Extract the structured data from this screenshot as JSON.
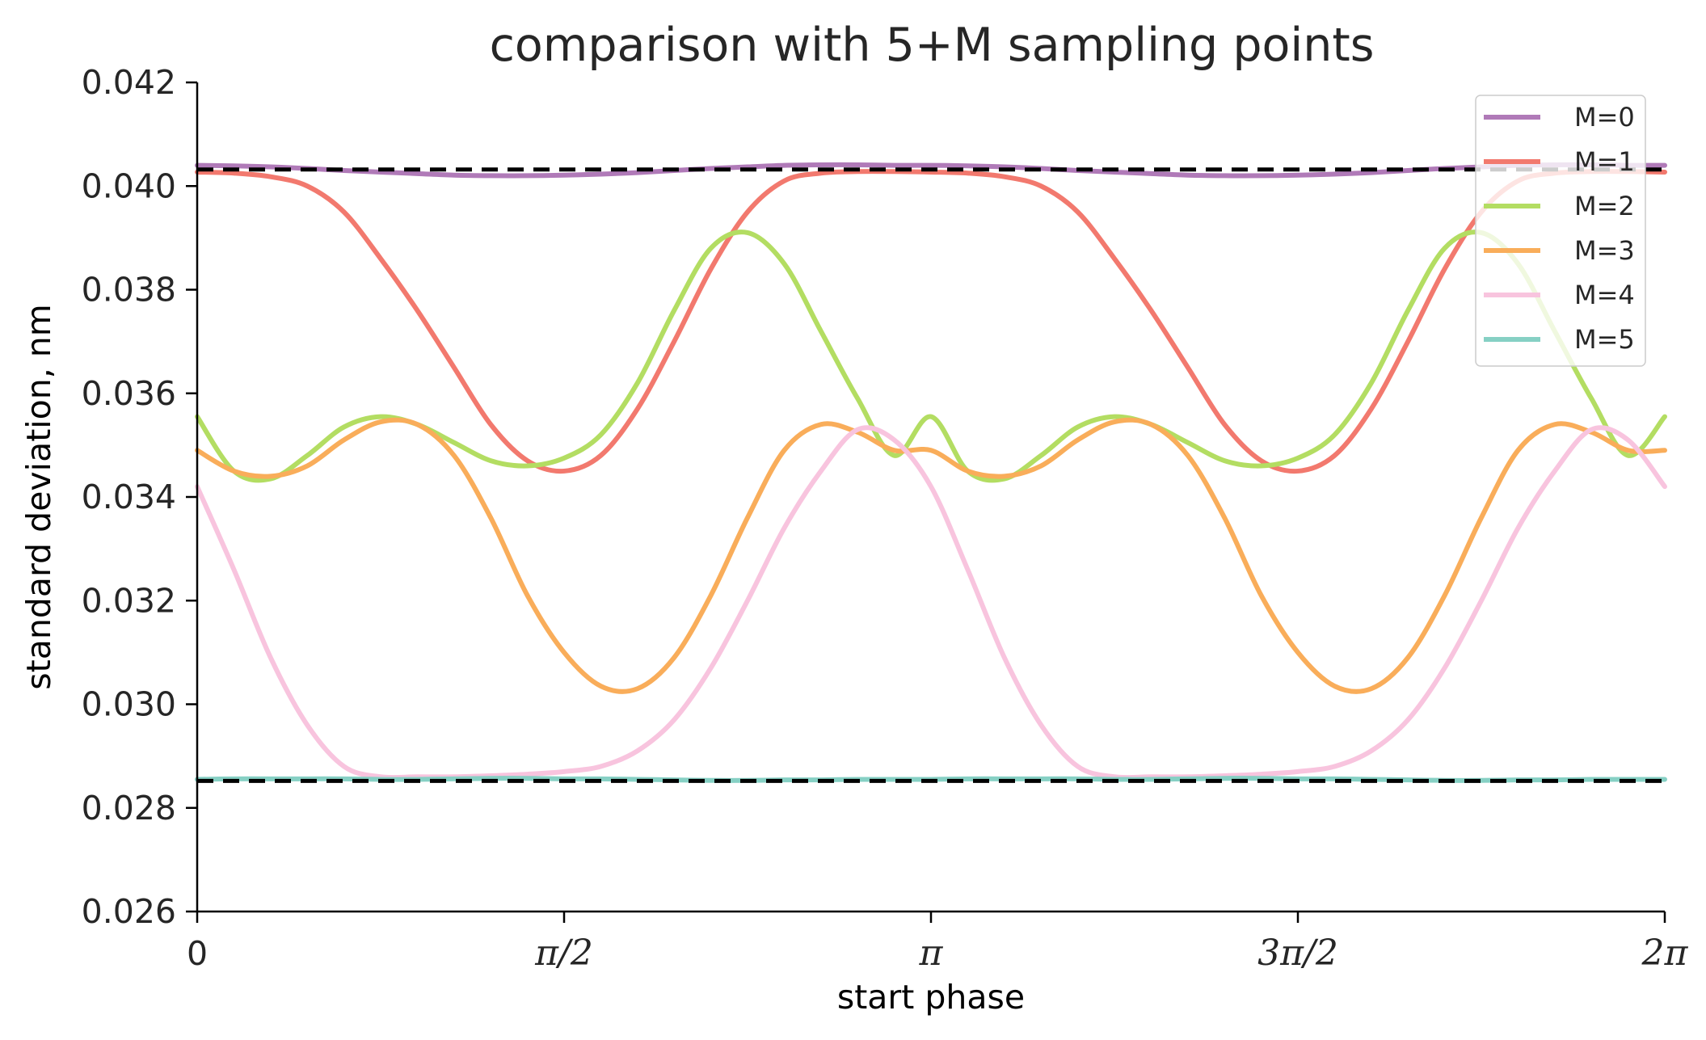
{
  "chart_data": {
    "type": "line",
    "title": "comparison with 5+M sampling points",
    "xlabel": "start phase",
    "ylabel": "standard deviation, nm",
    "xlim": [
      0,
      6.2832
    ],
    "ylim": [
      0.026,
      0.042
    ],
    "x_ticks": [
      {
        "value": 0,
        "label": "0"
      },
      {
        "value": 1.5708,
        "label": "π/2"
      },
      {
        "value": 3.1416,
        "label": "π"
      },
      {
        "value": 4.7124,
        "label": "3π/2"
      },
      {
        "value": 6.2832,
        "label": "2π"
      }
    ],
    "y_ticks": [
      {
        "value": 0.026,
        "label": "0.026"
      },
      {
        "value": 0.028,
        "label": "0.028"
      },
      {
        "value": 0.03,
        "label": "0.030"
      },
      {
        "value": 0.032,
        "label": "0.032"
      },
      {
        "value": 0.034,
        "label": "0.034"
      },
      {
        "value": 0.036,
        "label": "0.036"
      },
      {
        "value": 0.038,
        "label": "0.038"
      },
      {
        "value": 0.04,
        "label": "0.040"
      },
      {
        "value": 0.042,
        "label": "0.042"
      }
    ],
    "grid": false,
    "legend_position": "top-right",
    "x": [
      0,
      0.1571,
      0.3142,
      0.4712,
      0.6283,
      0.7854,
      0.9425,
      1.0996,
      1.2566,
      1.4137,
      1.5708,
      1.7279,
      1.885,
      2.042,
      2.1991,
      2.3562,
      2.5133,
      2.6704,
      2.8274,
      2.9845,
      3.1416
    ],
    "series": [
      {
        "name": "M=0",
        "color": "#b07ab8",
        "period": 3.1416,
        "values": [
          0.0404,
          0.04039,
          0.04037,
          0.04034,
          0.0403,
          0.04027,
          0.04024,
          0.04021,
          0.0402,
          0.0402,
          0.04021,
          0.04023,
          0.04026,
          0.0403,
          0.04034,
          0.04037,
          0.0404,
          0.04041,
          0.04041,
          0.0404,
          0.0404
        ]
      },
      {
        "name": "M=1",
        "color": "#f2796e",
        "period": 3.1416,
        "values": [
          0.04027,
          0.04025,
          0.04018,
          0.04,
          0.0395,
          0.0386,
          0.0376,
          0.0365,
          0.0354,
          0.0347,
          0.0345,
          0.0348,
          0.0357,
          0.037,
          0.0384,
          0.0395,
          0.0401,
          0.04025,
          0.04028,
          0.04028,
          0.04027
        ]
      },
      {
        "name": "M=2",
        "color": "#b3dd62",
        "period": 3.1416,
        "values": [
          0.03555,
          0.0345,
          0.03435,
          0.0348,
          0.03535,
          0.03555,
          0.0354,
          0.03505,
          0.0347,
          0.0346,
          0.03475,
          0.0352,
          0.0362,
          0.0376,
          0.0388,
          0.0391,
          0.0385,
          0.0372,
          0.0359,
          0.0348,
          0.03555
        ]
      },
      {
        "name": "M=3",
        "color": "#f9ad5a",
        "period": 3.1416,
        "values": [
          0.0349,
          0.0345,
          0.0344,
          0.0346,
          0.0351,
          0.03545,
          0.0354,
          0.0348,
          0.0336,
          0.0321,
          0.031,
          0.03035,
          0.0303,
          0.0309,
          0.0321,
          0.0336,
          0.0349,
          0.0354,
          0.03525,
          0.0349,
          0.0349
        ]
      },
      {
        "name": "M=4",
        "color": "#f8c4de",
        "period": 3.1416,
        "values": [
          0.0342,
          0.0326,
          0.0309,
          0.0296,
          0.0288,
          0.0286,
          0.0286,
          0.0286,
          0.02862,
          0.02865,
          0.0287,
          0.0288,
          0.0291,
          0.0297,
          0.0307,
          0.032,
          0.0334,
          0.0345,
          0.0353,
          0.0351,
          0.0342
        ]
      },
      {
        "name": "M=5",
        "color": "#86d0c4",
        "period": 3.1416,
        "values": [
          0.02855,
          0.02856,
          0.02856,
          0.02856,
          0.02856,
          0.02855,
          0.02855,
          0.02856,
          0.02857,
          0.02857,
          0.02856,
          0.02856,
          0.02855,
          0.02854,
          0.02853,
          0.02853,
          0.02854,
          0.02854,
          0.02855,
          0.02855,
          0.02855
        ]
      }
    ],
    "reference_lines": [
      {
        "y": 0.04032,
        "color": "#000000",
        "style": "dashed"
      },
      {
        "y": 0.02852,
        "color": "#000000",
        "style": "dashed"
      }
    ]
  }
}
